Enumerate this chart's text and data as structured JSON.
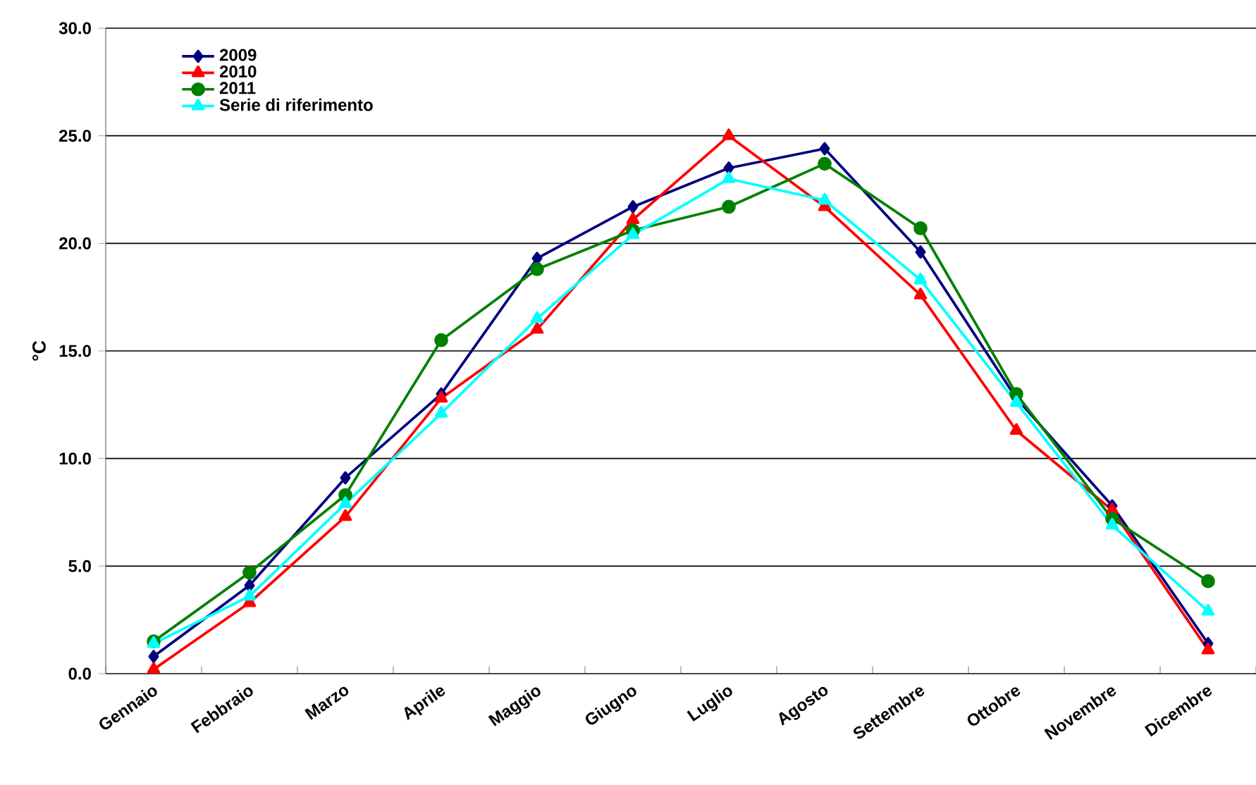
{
  "chart_data": {
    "type": "line",
    "ylabel": "°C",
    "categories": [
      "Gennaio",
      "Febbraio",
      "Marzo",
      "Aprile",
      "Maggio",
      "Giugno",
      "Luglio",
      "Agosto",
      "Settembre",
      "Ottobre",
      "Novembre",
      "Dicembre"
    ],
    "series": [
      {
        "name": "2009",
        "color": "#000080",
        "marker": "diamond",
        "values": [
          0.8,
          4.1,
          9.1,
          13.0,
          19.3,
          21.7,
          23.5,
          24.4,
          19.6,
          12.8,
          7.8,
          1.4
        ]
      },
      {
        "name": "2010",
        "color": "#ff0000",
        "marker": "triangle",
        "values": [
          0.2,
          3.3,
          7.3,
          12.8,
          16.0,
          21.1,
          25.0,
          21.7,
          17.6,
          11.3,
          7.6,
          1.1
        ]
      },
      {
        "name": "2011",
        "color": "#008000",
        "marker": "circle",
        "values": [
          1.5,
          4.7,
          8.3,
          15.5,
          18.8,
          20.6,
          21.7,
          23.7,
          20.7,
          13.0,
          7.2,
          4.3
        ]
      },
      {
        "name": "Serie di riferimento",
        "color": "#00ffff",
        "marker": "triangle",
        "values": [
          1.4,
          3.6,
          7.9,
          12.1,
          16.5,
          20.4,
          23.0,
          22.0,
          18.3,
          12.6,
          6.9,
          2.9
        ]
      }
    ],
    "ylim": [
      0,
      30
    ],
    "yticks": [
      {
        "value": 0,
        "label": "0.0"
      },
      {
        "value": 5,
        "label": "5.0"
      },
      {
        "value": 10,
        "label": "10.0"
      },
      {
        "value": 15,
        "label": "15.0"
      },
      {
        "value": 20,
        "label": "20.0"
      },
      {
        "value": 25,
        "label": "25.0"
      },
      {
        "value": 30,
        "label": "30.0"
      }
    ],
    "grid": "y",
    "legend": "top left",
    "line_style": "solid"
  }
}
